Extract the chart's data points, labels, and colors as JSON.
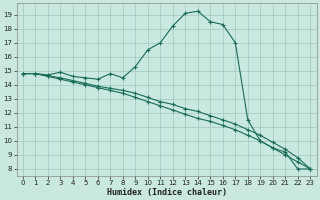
{
  "xlabel": "Humidex (Indice chaleur)",
  "bg_color": "#c8e8e0",
  "grid_color": "#a0c8c0",
  "line_color": "#1a6b5a",
  "xlim": [
    -0.5,
    23.5
  ],
  "ylim": [
    7.5,
    19.8
  ],
  "xticks": [
    0,
    1,
    2,
    3,
    4,
    5,
    6,
    7,
    8,
    9,
    10,
    11,
    12,
    13,
    14,
    15,
    16,
    17,
    18,
    19,
    20,
    21,
    22,
    23
  ],
  "yticks": [
    8,
    9,
    10,
    11,
    12,
    13,
    14,
    15,
    16,
    17,
    18,
    19
  ],
  "line1_x": [
    0,
    1,
    2,
    3,
    4,
    5,
    6,
    7,
    8,
    9,
    10,
    11,
    12,
    13,
    14,
    15,
    16,
    17,
    18,
    19,
    20,
    21,
    22,
    23
  ],
  "line1_y": [
    14.8,
    14.8,
    14.7,
    14.9,
    14.6,
    14.5,
    14.4,
    14.8,
    14.5,
    15.3,
    16.5,
    17.0,
    18.2,
    19.1,
    19.25,
    18.5,
    18.3,
    17.0,
    11.5,
    10.0,
    9.5,
    9.2,
    8.0,
    8.0
  ],
  "line2_x": [
    0,
    1,
    2,
    3,
    4,
    5,
    6,
    7,
    8,
    9,
    10,
    11,
    12,
    13,
    14,
    15,
    16,
    17,
    18,
    19,
    20,
    21,
    22,
    23
  ],
  "line2_y": [
    14.8,
    14.8,
    14.6,
    14.4,
    14.2,
    14.0,
    13.8,
    13.6,
    13.4,
    13.1,
    12.8,
    12.5,
    12.2,
    11.9,
    11.6,
    11.4,
    11.1,
    10.8,
    10.4,
    10.0,
    9.5,
    9.0,
    8.5,
    8.0
  ],
  "line3_x": [
    0,
    1,
    2,
    3,
    4,
    5,
    6,
    7,
    8,
    9,
    10,
    11,
    12,
    13,
    14,
    15,
    16,
    17,
    18,
    19,
    20,
    21,
    22,
    23
  ],
  "line3_y": [
    14.8,
    14.8,
    14.65,
    14.5,
    14.3,
    14.1,
    13.9,
    13.75,
    13.6,
    13.4,
    13.1,
    12.8,
    12.6,
    12.3,
    12.1,
    11.8,
    11.5,
    11.2,
    10.8,
    10.4,
    9.9,
    9.4,
    8.8,
    8.0
  ]
}
